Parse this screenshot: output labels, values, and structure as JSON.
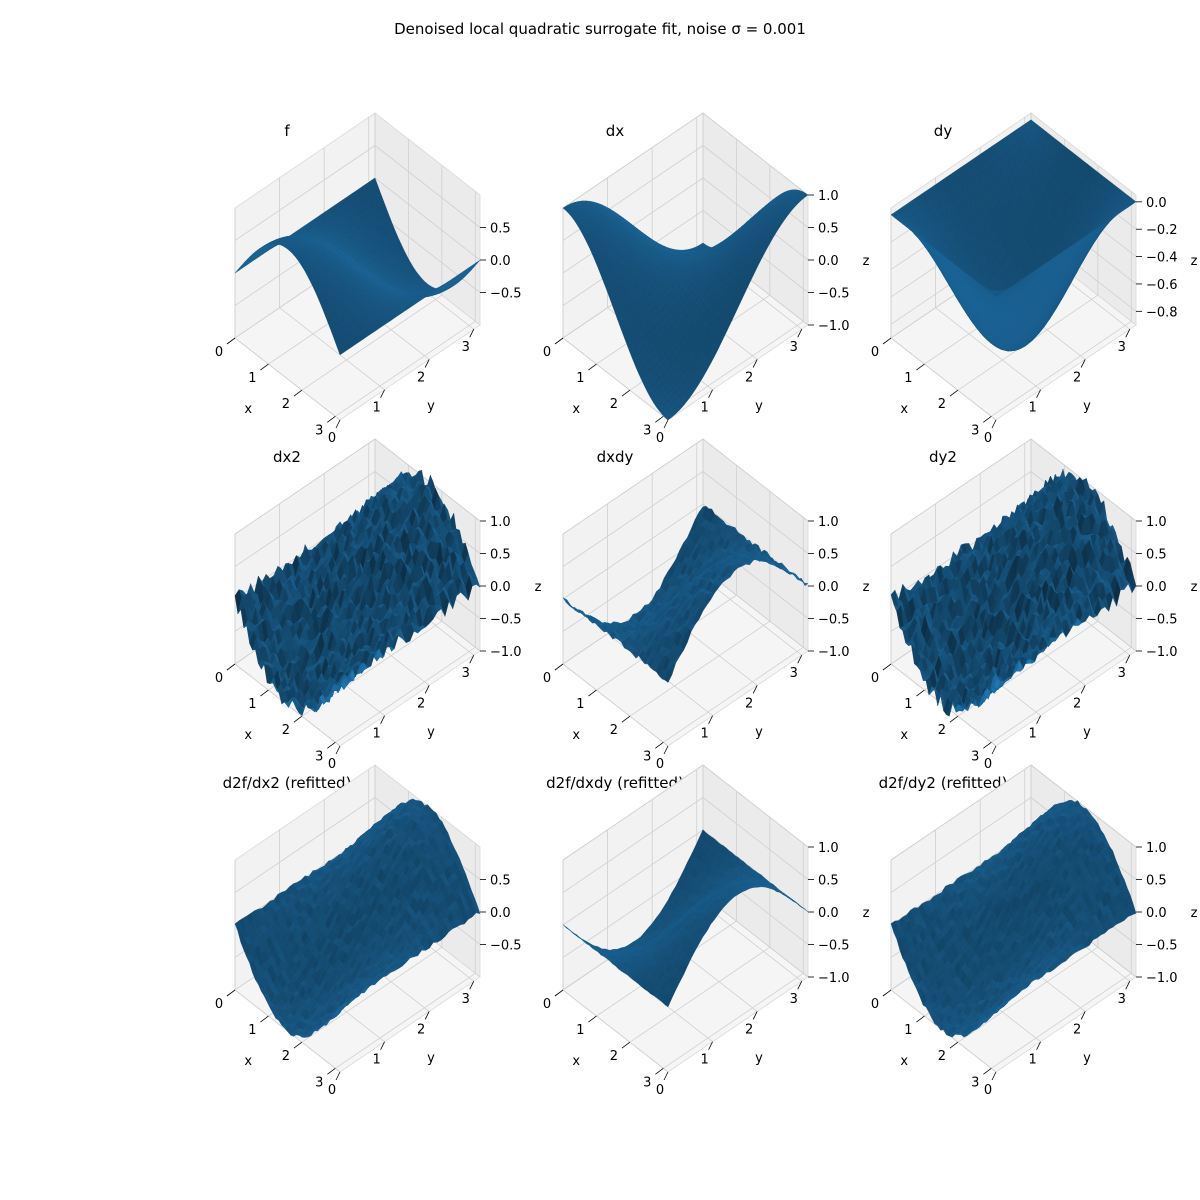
{
  "figure": {
    "suptitle": "Denoised local quadratic surrogate fit, noise σ = 0.001"
  },
  "chart_data": [
    {
      "type": "surface",
      "title": "f",
      "xlabel": "x",
      "ylabel": "y",
      "zlabel": "",
      "xticks": [
        "0",
        "1",
        "2",
        "3"
      ],
      "yticks": [
        "0",
        "1",
        "2",
        "3"
      ],
      "zticks": [
        "0.5",
        "0.0",
        "−0.5"
      ],
      "zlim": [
        -1.0,
        1.0
      ],
      "function": "sin(x)*cos(y)",
      "x_range": [
        0,
        3.14
      ],
      "y_range": [
        0,
        3.14
      ],
      "color": "#1f77b4"
    },
    {
      "type": "surface",
      "title": "dx",
      "xlabel": "x",
      "ylabel": "y",
      "zlabel": "z",
      "xticks": [
        "0",
        "1",
        "2",
        "3"
      ],
      "yticks": [
        "0",
        "1",
        "2",
        "3"
      ],
      "zticks": [
        "1.0",
        "0.5",
        "0.0",
        "−0.5",
        "−1.0"
      ],
      "zlim": [
        -1.0,
        1.0
      ],
      "function": "cos(x)*cos(y)",
      "x_range": [
        0,
        3.14
      ],
      "y_range": [
        0,
        3.14
      ],
      "color": "#1f77b4"
    },
    {
      "type": "surface",
      "title": "dy",
      "xlabel": "x",
      "ylabel": "y",
      "zlabel": "z",
      "xticks": [
        "0",
        "1",
        "2",
        "3"
      ],
      "yticks": [
        "0",
        "1",
        "2",
        "3"
      ],
      "zticks": [
        "0.0",
        "−0.2",
        "−0.4",
        "−0.6",
        "−0.8"
      ],
      "zlim": [
        -0.9,
        0.05
      ],
      "function": "-sin(x)*sin(y)",
      "x_range": [
        0,
        3.14
      ],
      "y_range": [
        0,
        3.14
      ],
      "color": "#1f77b4"
    },
    {
      "type": "surface",
      "title": "dx2",
      "xlabel": "x",
      "ylabel": "y",
      "zlabel": "z",
      "xticks": [
        "0",
        "1",
        "2",
        "3"
      ],
      "yticks": [
        "0",
        "1",
        "2",
        "3"
      ],
      "zticks": [
        "1.0",
        "0.5",
        "0.0",
        "−0.5",
        "−1.0"
      ],
      "zlim": [
        -1.0,
        1.0
      ],
      "function": "-sin(x)*cos(y) (noisy estimate)",
      "noise": 0.12,
      "x_range": [
        0,
        3.14
      ],
      "y_range": [
        0,
        3.14
      ],
      "color": "#1f77b4"
    },
    {
      "type": "surface",
      "title": "dxdy",
      "xlabel": "x",
      "ylabel": "y",
      "zlabel": "z",
      "xticks": [
        "0",
        "1",
        "2",
        "3"
      ],
      "yticks": [
        "0",
        "1",
        "2",
        "3"
      ],
      "zticks": [
        "1.0",
        "0.5",
        "0.0",
        "−0.5",
        "−1.0"
      ],
      "zlim": [
        -1.0,
        1.0
      ],
      "function": "-cos(x)*sin(y) (noisy estimate)",
      "noise": 0.04,
      "x_range": [
        0,
        3.14
      ],
      "y_range": [
        0,
        3.14
      ],
      "color": "#1f77b4"
    },
    {
      "type": "surface",
      "title": "dy2",
      "xlabel": "x",
      "ylabel": "y",
      "zlabel": "z",
      "xticks": [
        "0",
        "1",
        "2",
        "3"
      ],
      "yticks": [
        "0",
        "1",
        "2",
        "3"
      ],
      "zticks": [
        "1.0",
        "0.5",
        "0.0",
        "−0.5",
        "−1.0"
      ],
      "zlim": [
        -1.0,
        1.0
      ],
      "function": "-sin(x)*cos(y) (noisy estimate)",
      "noise": 0.12,
      "x_range": [
        0,
        3.14
      ],
      "y_range": [
        0,
        3.14
      ],
      "color": "#1f77b4"
    },
    {
      "type": "surface",
      "title": "d2f/dx2 (refitted)",
      "xlabel": "x",
      "ylabel": "y",
      "zlabel": "",
      "xticks": [
        "0",
        "1",
        "2",
        "3"
      ],
      "yticks": [
        "0",
        "1",
        "2",
        "3"
      ],
      "zticks": [
        "0.5",
        "0.0",
        "−0.5"
      ],
      "zlim": [
        -1.0,
        1.0
      ],
      "function": "-sin(x)*cos(y) (refitted)",
      "noise": 0.03,
      "x_range": [
        0,
        3.14
      ],
      "y_range": [
        0,
        3.14
      ],
      "color": "#1f77b4"
    },
    {
      "type": "surface",
      "title": "d2f/dxdy (refitted)",
      "xlabel": "x",
      "ylabel": "y",
      "zlabel": "z",
      "xticks": [
        "0",
        "1",
        "2",
        "3"
      ],
      "yticks": [
        "0",
        "1",
        "2",
        "3"
      ],
      "zticks": [
        "1.0",
        "0.5",
        "0.0",
        "−0.5",
        "−1.0"
      ],
      "zlim": [
        -1.0,
        1.0
      ],
      "function": "-cos(x)*sin(y) (refitted)",
      "noise": 0.01,
      "x_range": [
        0,
        3.14
      ],
      "y_range": [
        0,
        3.14
      ],
      "color": "#1f77b4"
    },
    {
      "type": "surface",
      "title": "d2f/dy2 (refitted)",
      "xlabel": "x",
      "ylabel": "y",
      "zlabel": "z",
      "xticks": [
        "0",
        "1",
        "2",
        "3"
      ],
      "yticks": [
        "0",
        "1",
        "2",
        "3"
      ],
      "zticks": [
        "1.0",
        "0.5",
        "0.0",
        "−0.5",
        "−1.0"
      ],
      "zlim": [
        -1.0,
        1.0
      ],
      "function": "-sin(x)*cos(y) (refitted)",
      "noise": 0.03,
      "x_range": [
        0,
        3.14
      ],
      "y_range": [
        0,
        3.14
      ],
      "color": "#1f77b4"
    }
  ]
}
